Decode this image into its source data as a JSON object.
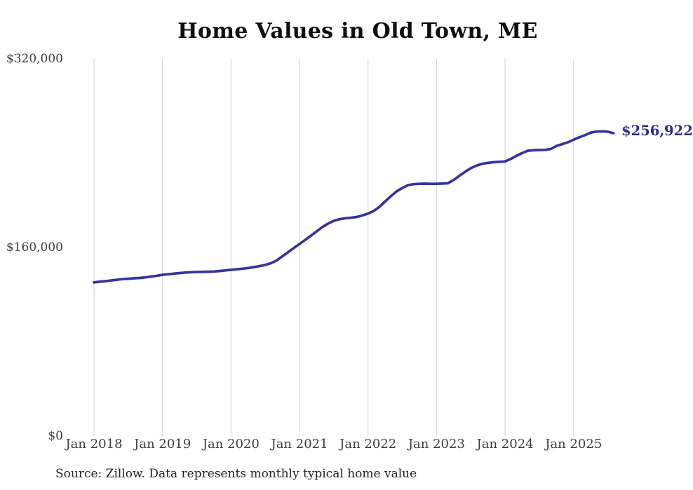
{
  "chart": {
    "title": "Home Values in Old Town, ME",
    "end_label": "$256,922",
    "source_note": "Source: Zillow. Data represents monthly typical home value",
    "colors": {
      "line": "#37349e",
      "end_label": "#2e2b8e",
      "grid": "#d2d2d2",
      "axis_text": "#3d3d3d",
      "title_text": "#0f0f0f",
      "source_text": "#222222",
      "background": "#ffffff"
    },
    "y_axis": {
      "ticks": [
        {
          "label": "$320,000",
          "value": 320000
        },
        {
          "label": "$160,000",
          "value": 160000
        },
        {
          "label": "$0",
          "value": 0
        }
      ]
    },
    "x_axis": {
      "ticks": [
        "Jan 2018",
        "Jan 2019",
        "Jan 2020",
        "Jan 2021",
        "Jan 2022",
        "Jan 2023",
        "Jan 2024",
        "Jan 2025"
      ]
    }
  },
  "chart_data": {
    "type": "line",
    "title": "Home Values in Old Town, ME",
    "xlabel": "",
    "ylabel": "",
    "ylim": [
      0,
      320000
    ],
    "grid": "vertical-only",
    "legend": "none",
    "x_start": "2018-01",
    "x_step_months": 1,
    "n_points": 92,
    "x_end": "2025-08",
    "latest_value": 256922,
    "latest_value_label": "$256,922",
    "series": [
      {
        "name": "Monthly typical home value",
        "values": [
          130400,
          130900,
          131400,
          132000,
          132600,
          133100,
          133500,
          133800,
          134100,
          134600,
          135300,
          136000,
          136800,
          137300,
          137800,
          138300,
          138700,
          139000,
          139200,
          139300,
          139400,
          139600,
          140000,
          140500,
          141000,
          141500,
          142000,
          142600,
          143300,
          144200,
          145200,
          146600,
          149000,
          152500,
          156000,
          159500,
          163000,
          166500,
          170000,
          173700,
          177300,
          180200,
          182600,
          184000,
          184800,
          185200,
          185800,
          187200,
          188700,
          191000,
          194500,
          199000,
          203500,
          207600,
          210500,
          212900,
          213700,
          214000,
          214100,
          214000,
          214000,
          214200,
          214500,
          217300,
          220800,
          224200,
          227200,
          229500,
          231000,
          231800,
          232300,
          232700,
          233000,
          235100,
          237800,
          240100,
          242100,
          242500,
          242700,
          242800,
          243500,
          246100,
          247700,
          249200,
          251400,
          253500,
          255300,
          257400,
          258300,
          258500,
          258200,
          256922
        ]
      }
    ]
  }
}
